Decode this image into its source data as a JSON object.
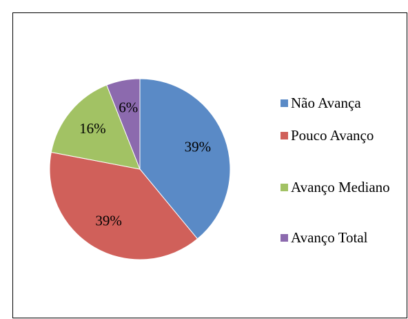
{
  "chart_data": {
    "type": "pie",
    "categories": [
      "Não Avança",
      "Pouco Avanço",
      "Avanço Mediano",
      "Avanço Total"
    ],
    "values": [
      39,
      39,
      16,
      6
    ],
    "value_labels": [
      "39%",
      "39%",
      "16%",
      "6%"
    ],
    "colors": [
      "#5a8ac6",
      "#d0605a",
      "#a2c264",
      "#8c6aae"
    ],
    "legend": "right"
  }
}
